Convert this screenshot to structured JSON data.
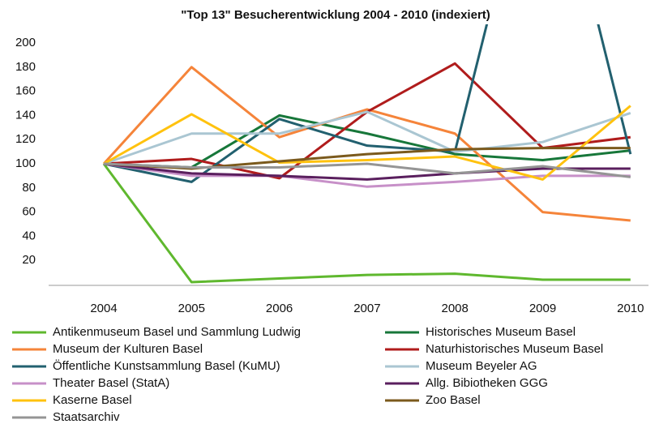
{
  "chart_data": {
    "type": "line",
    "title": "\"Top 13\" Besucherentwicklung 2004 - 2010 (indexiert)",
    "categories": [
      "2004",
      "2005",
      "2006",
      "2007",
      "2008",
      "2009",
      "2010"
    ],
    "ylim": [
      0,
      200
    ],
    "yticks": [
      20,
      40,
      60,
      80,
      100,
      120,
      140,
      160,
      180,
      200
    ],
    "grid": false,
    "series": [
      {
        "name": "Antikenmuseum Basel und Sammlung Ludwig",
        "color": "#5fb82e",
        "values": [
          100,
          2,
          5,
          8,
          9,
          4,
          4
        ]
      },
      {
        "name": "Historisches Museum Basel",
        "color": "#17773a",
        "values": [
          100,
          97,
          140,
          125,
          108,
          103,
          111
        ]
      },
      {
        "name": "Museum der Kulturen Basel",
        "color": "#f5843a",
        "values": [
          100,
          180,
          122,
          145,
          125,
          60,
          53
        ]
      },
      {
        "name": "Naturhistorisches Museum Basel",
        "color": "#b01c1c",
        "values": [
          100,
          104,
          88,
          143,
          183,
          113,
          122
        ]
      },
      {
        "name": "Öffentliche Kunstsammlung Basel (KuMU)",
        "color": "#22606f",
        "values": [
          100,
          85,
          137,
          115,
          110,
          400,
          108
        ]
      },
      {
        "name": "Museum Beyeler AG",
        "color": "#aac6d2",
        "values": [
          100,
          125,
          125,
          143,
          110,
          118,
          142
        ]
      },
      {
        "name": "Theater Basel (StatA)",
        "color": "#c790c8",
        "values": [
          100,
          90,
          90,
          81,
          85,
          90,
          90
        ]
      },
      {
        "name": "Allg. Bibiotheken GGG",
        "color": "#5a1f5e",
        "values": [
          100,
          92,
          90,
          87,
          92,
          96,
          96
        ]
      },
      {
        "name": "Kaserne Basel",
        "color": "#ffc20e",
        "values": [
          100,
          141,
          101,
          103,
          106,
          87,
          148
        ]
      },
      {
        "name": "Zoo Basel",
        "color": "#7b5a1d",
        "values": [
          100,
          96,
          102,
          108,
          112,
          113,
          113
        ]
      },
      {
        "name": "Staatsarchiv",
        "color": "#959595",
        "values": [
          100,
          97,
          97,
          100,
          92,
          98,
          89
        ]
      }
    ]
  }
}
